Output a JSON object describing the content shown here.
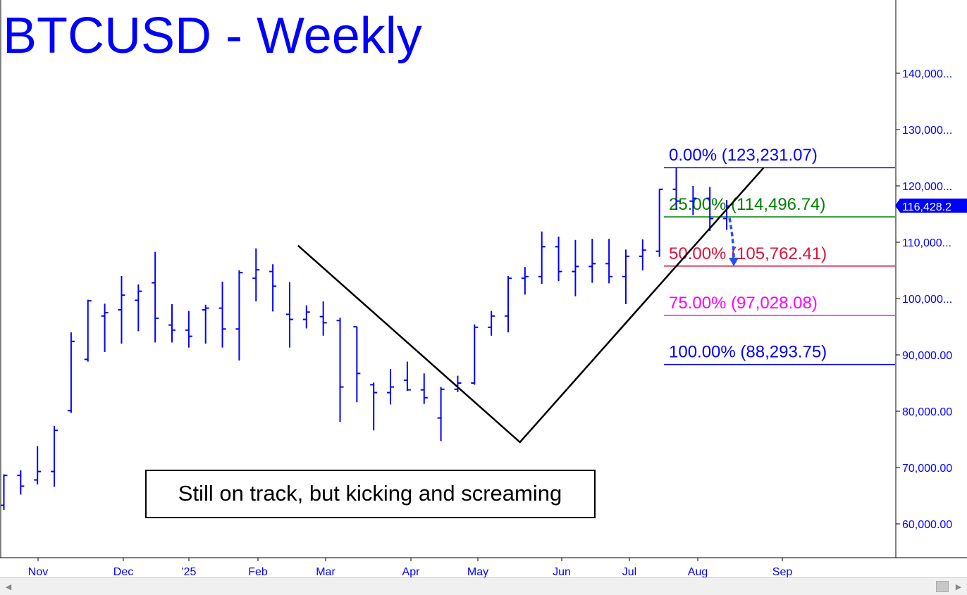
{
  "chart_data": {
    "type": "ohlc",
    "title": "BTCUSD - Weekly",
    "x_tick_labels": [
      "Nov",
      "Dec",
      "'25",
      "Feb",
      "Mar",
      "Apr",
      "May",
      "Jun",
      "Jul",
      "Aug",
      "Sep"
    ],
    "y_tick_labels": [
      "140,000...",
      "130,000...",
      "120,000...",
      "110,000...",
      "100,000...",
      "90,000.00",
      "80,000.00",
      "70,000.00",
      "60,000.00"
    ],
    "y_ticks": [
      140000,
      130000,
      120000,
      110000,
      100000,
      90000,
      80000,
      70000,
      60000
    ],
    "ylim": [
      53700,
      152500
    ],
    "grid": false,
    "last_price_label": "116,428.2",
    "last_price": 116428.2,
    "bars": [
      {
        "high": 68800,
        "low": 62500,
        "open": 63300,
        "close": 68600
      },
      {
        "high": 69500,
        "low": 65200,
        "open": 68600,
        "close": 66700
      },
      {
        "high": 73800,
        "low": 67000,
        "open": 67800,
        "close": 69300
      },
      {
        "high": 77400,
        "low": 66600,
        "open": 69300,
        "close": 76600
      },
      {
        "high": 94000,
        "low": 79700,
        "open": 80100,
        "close": 92400
      },
      {
        "high": 99800,
        "low": 88800,
        "open": 89200,
        "close": 99600
      },
      {
        "high": 99100,
        "low": 90500,
        "open": 96900,
        "close": 97500
      },
      {
        "high": 104000,
        "low": 92000,
        "open": 98000,
        "close": 100600
      },
      {
        "high": 102500,
        "low": 94200,
        "open": 99700,
        "close": 101300
      },
      {
        "high": 108300,
        "low": 92200,
        "open": 102800,
        "close": 96500
      },
      {
        "high": 99000,
        "low": 92200,
        "open": 95300,
        "close": 94400
      },
      {
        "high": 97800,
        "low": 91300,
        "open": 94400,
        "close": 93300
      },
      {
        "high": 98900,
        "low": 92000,
        "open": 98000,
        "close": 98300
      },
      {
        "high": 103000,
        "low": 91300,
        "open": 98300,
        "close": 94600
      },
      {
        "high": 105000,
        "low": 89000,
        "open": 94600,
        "close": 104600
      },
      {
        "high": 108900,
        "low": 99500,
        "open": 103600,
        "close": 105100
      },
      {
        "high": 106100,
        "low": 97700,
        "open": 104800,
        "close": 102200
      },
      {
        "high": 102900,
        "low": 91300,
        "open": 97200,
        "close": 96300
      },
      {
        "high": 98800,
        "low": 94700,
        "open": 96300,
        "close": 97600
      },
      {
        "high": 99500,
        "low": 93400,
        "open": 96800,
        "close": 95700
      },
      {
        "high": 96600,
        "low": 78100,
        "open": 96100,
        "close": 84300
      },
      {
        "high": 95000,
        "low": 81600,
        "open": 95000,
        "close": 86700
      },
      {
        "high": 85100,
        "low": 76600,
        "open": 84700,
        "close": 83300
      },
      {
        "high": 87500,
        "low": 81200,
        "open": 83300,
        "close": 84300
      },
      {
        "high": 88800,
        "low": 83600,
        "open": 85500,
        "close": 83800
      },
      {
        "high": 86700,
        "low": 81300,
        "open": 83800,
        "close": 82400
      },
      {
        "high": 84300,
        "low": 74700,
        "open": 78800,
        "close": 83900
      },
      {
        "high": 86300,
        "low": 83400,
        "open": 83900,
        "close": 85000
      },
      {
        "high": 95400,
        "low": 84700,
        "open": 85000,
        "close": 94900
      },
      {
        "high": 97800,
        "low": 93400,
        "open": 94900,
        "close": 96900
      },
      {
        "high": 104000,
        "low": 94000,
        "open": 96900,
        "close": 103600
      },
      {
        "high": 105600,
        "low": 100700,
        "open": 103600,
        "close": 103900
      },
      {
        "high": 111900,
        "low": 102600,
        "open": 103900,
        "close": 109200
      },
      {
        "high": 111000,
        "low": 103100,
        "open": 109200,
        "close": 104800
      },
      {
        "high": 110400,
        "low": 100400,
        "open": 104800,
        "close": 105700
      },
      {
        "high": 110600,
        "low": 102800,
        "open": 105700,
        "close": 106200
      },
      {
        "high": 110600,
        "low": 102700,
        "open": 106200,
        "close": 103900
      },
      {
        "high": 108700,
        "low": 99000,
        "open": 103900,
        "close": 107500
      },
      {
        "high": 110500,
        "low": 105000,
        "open": 107500,
        "close": 108600
      },
      {
        "high": 119500,
        "low": 107400,
        "open": 108400,
        "close": 119400
      },
      {
        "high": 123200,
        "low": 115800,
        "open": 119400,
        "close": 117300
      },
      {
        "high": 120000,
        "low": 114800,
        "open": 117300,
        "close": 117800
      },
      {
        "high": 119800,
        "low": 112000,
        "open": 117800,
        "close": 114200
      },
      {
        "high": 117500,
        "low": 112200,
        "open": 114200,
        "close": 116428
      }
    ],
    "abc_path": [
      {
        "week": 17.5,
        "value": 109400
      },
      {
        "week": 30.7,
        "value": 74500
      },
      {
        "week": 45.2,
        "value": 123231
      }
    ],
    "projection_arrow": {
      "from": 114300,
      "to": 106000
    },
    "fib_levels": [
      {
        "label": "0.00% (123,231.07)",
        "value": 123231.07,
        "color": "#0000ff"
      },
      {
        "label": "25.00% (114,496.74)",
        "value": 114496.74,
        "color": "#008000"
      },
      {
        "label": "50.00% (105,762.41)",
        "value": 105762.41,
        "color": "#dc143c"
      },
      {
        "label": "75.00% (97,028.08)",
        "value": 97028.08,
        "color": "#ff00ff"
      },
      {
        "label": "100.00% (88,293.75)",
        "value": 88293.75,
        "color": "#0000ff"
      }
    ],
    "annotation": "Still on track, but kicking and screaming"
  },
  "colors": {
    "bars": "#0000ff",
    "title": "#0000ff",
    "axis_text": "#0000ff",
    "abc_line": "#000000",
    "price_tag_bg": "#0000ff",
    "arrow": "#1e50ff"
  },
  "scrollbar": {
    "left_icon": "scroll-left-icon",
    "right_icon": "scroll-right-icon"
  }
}
